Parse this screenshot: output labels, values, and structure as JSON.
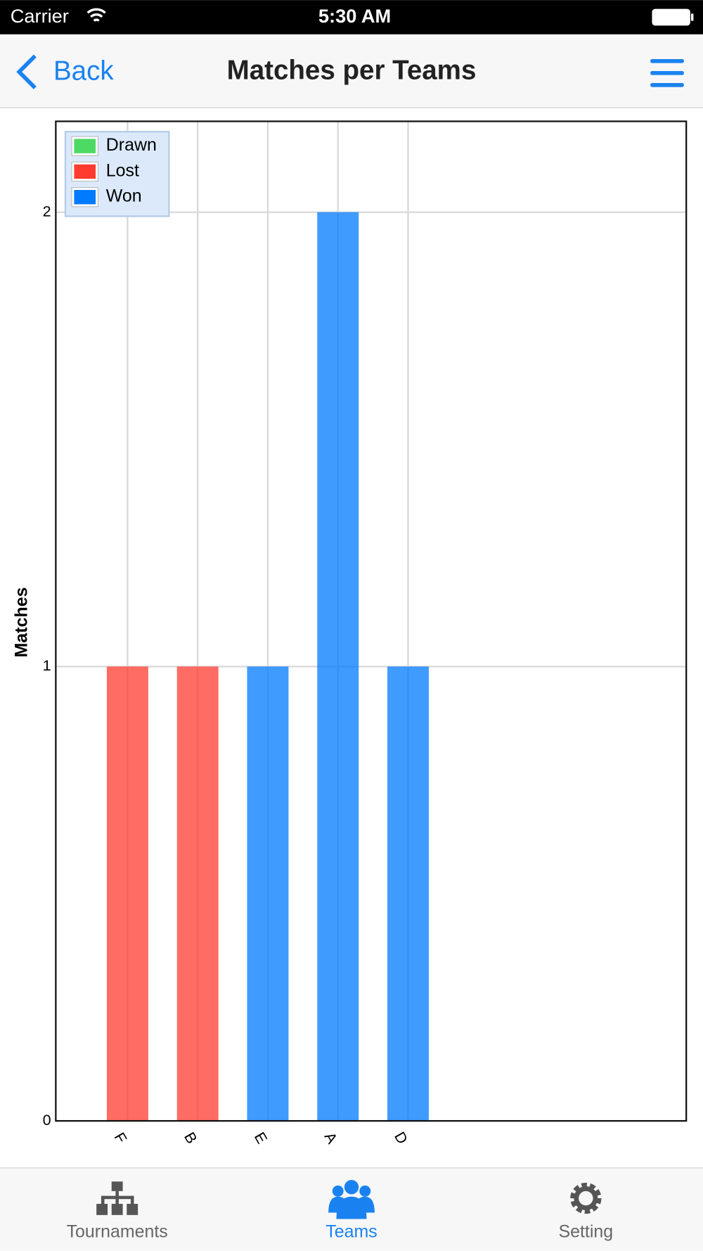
{
  "status_bar": {
    "carrier": "Carrier",
    "time": "5:30 AM"
  },
  "nav_bar": {
    "back": "Back",
    "title": "Matches per Teams"
  },
  "chart_data": {
    "type": "bar",
    "stacked": true,
    "ylabel": "Matches",
    "categories": [
      "F",
      "B",
      "E",
      "A",
      "D"
    ],
    "series": [
      {
        "name": "Drawn",
        "color": "#4cd964",
        "values": [
          0,
          0,
          0,
          0,
          0
        ]
      },
      {
        "name": "Lost",
        "color": "#ff3b30",
        "values": [
          1,
          1,
          0,
          0,
          0
        ]
      },
      {
        "name": "Won",
        "color": "#007aff",
        "values": [
          0,
          0,
          1,
          2,
          1
        ]
      }
    ],
    "ylim": [
      0,
      2.2
    ],
    "yticks": [
      0,
      1,
      2
    ],
    "grid": true,
    "legend": "top-left"
  },
  "tab_bar": {
    "items": [
      "Tournaments",
      "Teams",
      "Setting"
    ],
    "selected": 1
  }
}
